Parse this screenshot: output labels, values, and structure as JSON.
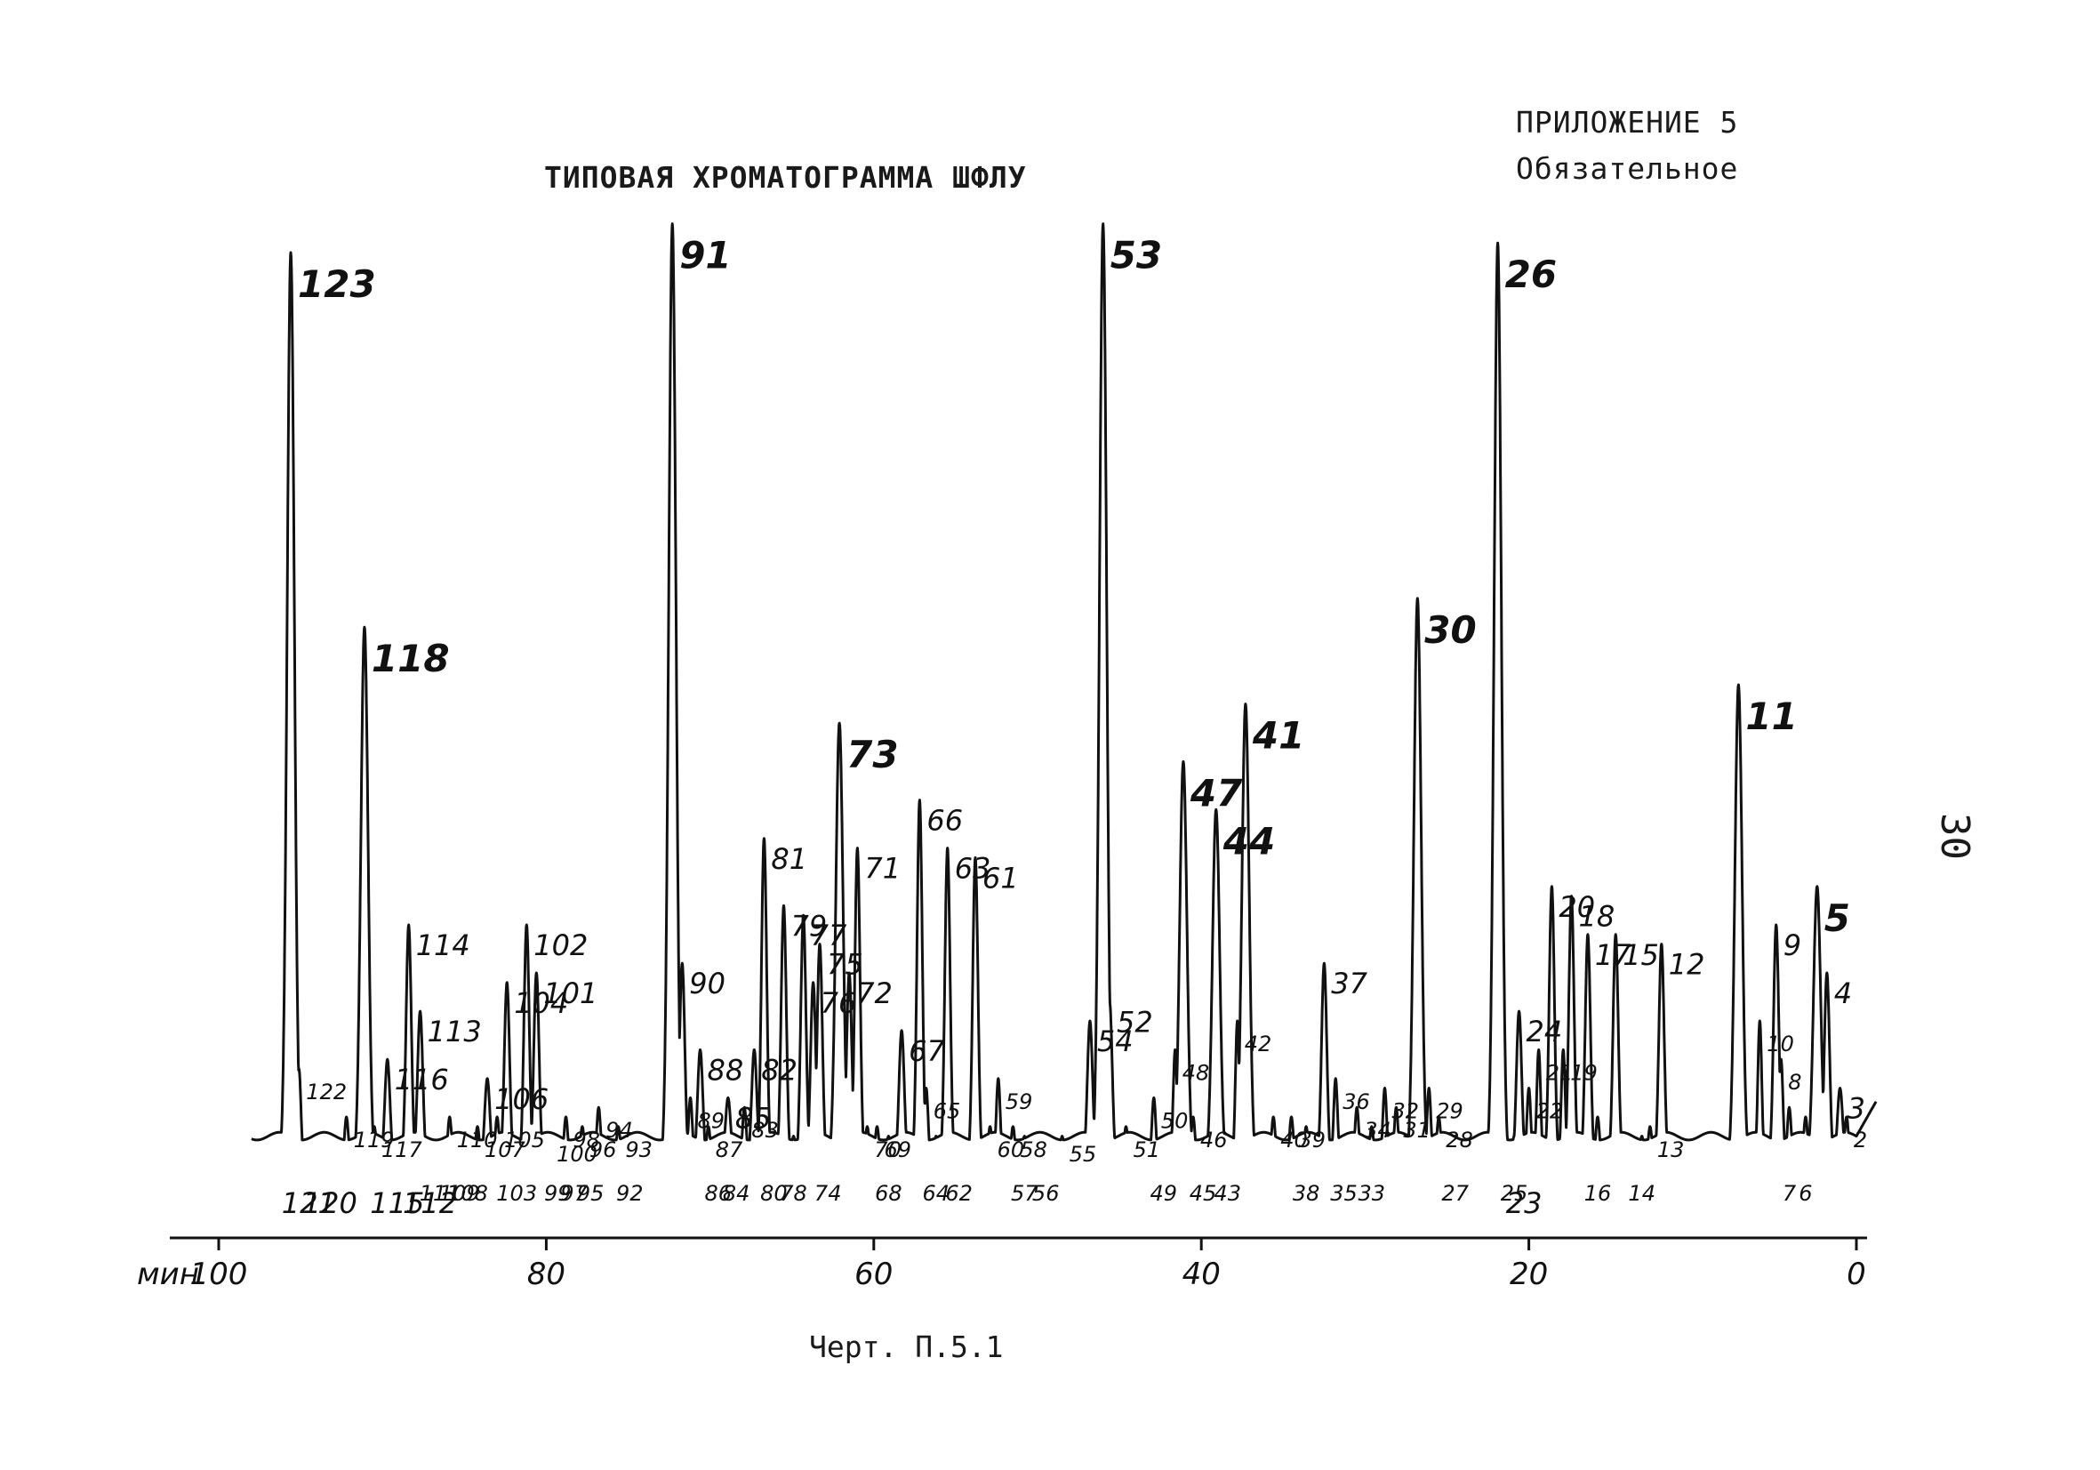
{
  "header": {
    "appendix": "ПРИЛОЖЕНИЕ 5",
    "appendix_sub": "Обязательное",
    "title": "ТИПОВАЯ ХРОМАТОГРАММА ШФЛУ",
    "caption": "Черт. П.5.1",
    "page_number": "30"
  },
  "colors": {
    "ink": "#111111",
    "paper": "#ffffff"
  },
  "chart_data": {
    "type": "line",
    "title": "ТИПОВАЯ ХРОМАТОГРАММА ШФЛУ",
    "xlabel": "",
    "x_unit_label": "мин",
    "ylabel": "",
    "x_reversed": true,
    "xlim": [
      0,
      100
    ],
    "x_ticks": [
      {
        "x": 100,
        "label": "100"
      },
      {
        "x": 80,
        "label": "80"
      },
      {
        "x": 60,
        "label": "60"
      },
      {
        "x": 40,
        "label": "40"
      },
      {
        "x": 20,
        "label": "20"
      },
      {
        "x": 0,
        "label": "0"
      }
    ],
    "baseline": 0.03,
    "peaks": [
      {
        "x": 0.6,
        "h": 0.05,
        "label": "2",
        "lp": "above",
        "size": "s"
      },
      {
        "x": 1.0,
        "h": 0.08,
        "label": "3",
        "lp": "above",
        "size": "m"
      },
      {
        "x": 1.8,
        "h": 0.2,
        "label": "4",
        "lp": "above",
        "size": "m"
      },
      {
        "x": 2.4,
        "h": 0.29,
        "label": "5",
        "lp": "above",
        "size": "l"
      },
      {
        "x": 3.1,
        "h": 0.05,
        "label": "6",
        "lp": "below",
        "size": "s"
      },
      {
        "x": 4.1,
        "h": 0.06,
        "label": "7",
        "lp": "below",
        "size": "s"
      },
      {
        "x": 4.6,
        "h": 0.11,
        "label": "8",
        "lp": "above",
        "size": "s"
      },
      {
        "x": 4.9,
        "h": 0.25,
        "label": "9",
        "lp": "above",
        "size": "m"
      },
      {
        "x": 5.9,
        "h": 0.15,
        "label": "10",
        "lp": "above",
        "size": "s"
      },
      {
        "x": 7.2,
        "h": 0.5,
        "label": "11",
        "lp": "above",
        "size": "l"
      },
      {
        "x": 11.9,
        "h": 0.23,
        "label": "12",
        "lp": "above",
        "size": "m"
      },
      {
        "x": 12.6,
        "h": 0.04,
        "label": "13",
        "lp": "above",
        "size": "s"
      },
      {
        "x": 13.1,
        "h": 0.03,
        "label": "14",
        "lp": "below",
        "size": "s"
      },
      {
        "x": 14.7,
        "h": 0.24,
        "label": "15",
        "lp": "above",
        "size": "m"
      },
      {
        "x": 15.8,
        "h": 0.05,
        "label": "16",
        "lp": "below",
        "size": "s"
      },
      {
        "x": 16.4,
        "h": 0.24,
        "label": "17",
        "lp": "above",
        "size": "m"
      },
      {
        "x": 17.4,
        "h": 0.28,
        "label": "18",
        "lp": "above",
        "size": "m"
      },
      {
        "x": 17.9,
        "h": 0.12,
        "label": "19",
        "lp": "above",
        "size": "s"
      },
      {
        "x": 18.6,
        "h": 0.29,
        "label": "20",
        "lp": "above",
        "size": "m"
      },
      {
        "x": 19.4,
        "h": 0.12,
        "label": "21",
        "lp": "above",
        "size": "s"
      },
      {
        "x": 20.0,
        "h": 0.08,
        "label": "22",
        "lp": "above",
        "size": "s"
      },
      {
        "x": 20.3,
        "h": 0.02,
        "label": "23",
        "lp": "below",
        "size": "m"
      },
      {
        "x": 20.6,
        "h": 0.16,
        "label": "24",
        "lp": "above",
        "size": "m"
      },
      {
        "x": 20.9,
        "h": 0.03,
        "label": "25",
        "lp": "below",
        "size": "s"
      },
      {
        "x": 21.9,
        "h": 0.96,
        "label": "26",
        "lp": "above",
        "size": "l"
      },
      {
        "x": 24.5,
        "h": 0.03,
        "label": "27",
        "lp": "below",
        "size": "s"
      },
      {
        "x": 25.5,
        "h": 0.05,
        "label": "28",
        "lp": "above",
        "size": "s"
      },
      {
        "x": 26.1,
        "h": 0.08,
        "label": "29",
        "lp": "above",
        "size": "s"
      },
      {
        "x": 26.8,
        "h": 0.59,
        "label": "30",
        "lp": "above",
        "size": "l"
      },
      {
        "x": 28.1,
        "h": 0.06,
        "label": "31",
        "lp": "above",
        "size": "s"
      },
      {
        "x": 28.8,
        "h": 0.08,
        "label": "32",
        "lp": "above",
        "size": "s"
      },
      {
        "x": 29.6,
        "h": 0.04,
        "label": "33",
        "lp": "below",
        "size": "s"
      },
      {
        "x": 30.5,
        "h": 0.06,
        "label": "34",
        "lp": "above",
        "size": "s"
      },
      {
        "x": 31.3,
        "h": 0.03,
        "label": "35",
        "lp": "below",
        "size": "s"
      },
      {
        "x": 31.8,
        "h": 0.09,
        "label": "36",
        "lp": "above",
        "size": "s"
      },
      {
        "x": 32.5,
        "h": 0.21,
        "label": "37",
        "lp": "above",
        "size": "m"
      },
      {
        "x": 33.6,
        "h": 0.04,
        "label": "38",
        "lp": "below",
        "size": "s"
      },
      {
        "x": 34.5,
        "h": 0.05,
        "label": "39",
        "lp": "above",
        "size": "s"
      },
      {
        "x": 35.6,
        "h": 0.05,
        "label": "40",
        "lp": "above",
        "size": "s"
      },
      {
        "x": 37.3,
        "h": 0.48,
        "label": "41",
        "lp": "above",
        "size": "l"
      },
      {
        "x": 37.8,
        "h": 0.15,
        "label": "42",
        "lp": "above",
        "size": "s"
      },
      {
        "x": 38.4,
        "h": 0.02,
        "label": "43",
        "lp": "below",
        "size": "s"
      },
      {
        "x": 39.1,
        "h": 0.37,
        "label": "44",
        "lp": "above",
        "size": "l"
      },
      {
        "x": 39.9,
        "h": 0.02,
        "label": "45",
        "lp": "below",
        "size": "s"
      },
      {
        "x": 40.5,
        "h": 0.05,
        "label": "46",
        "lp": "above",
        "size": "s"
      },
      {
        "x": 41.1,
        "h": 0.42,
        "label": "47",
        "lp": "above",
        "size": "l"
      },
      {
        "x": 41.6,
        "h": 0.12,
        "label": "48",
        "lp": "above",
        "size": "s"
      },
      {
        "x": 42.3,
        "h": 0.02,
        "label": "49",
        "lp": "below",
        "size": "s"
      },
      {
        "x": 42.9,
        "h": 0.07,
        "label": "50",
        "lp": "above",
        "size": "s"
      },
      {
        "x": 44.6,
        "h": 0.04,
        "label": "51",
        "lp": "above",
        "size": "s"
      },
      {
        "x": 45.6,
        "h": 0.17,
        "label": "52",
        "lp": "above",
        "size": "m"
      },
      {
        "x": 46.0,
        "h": 0.98,
        "label": "53",
        "lp": "above",
        "size": "l"
      },
      {
        "x": 46.8,
        "h": 0.15,
        "label": "54",
        "lp": "above",
        "size": "m"
      },
      {
        "x": 48.5,
        "h": 0.03,
        "label": "55",
        "lp": "above",
        "size": "s"
      },
      {
        "x": 49.5,
        "h": 0.02,
        "label": "56",
        "lp": "below",
        "size": "s"
      },
      {
        "x": 50.8,
        "h": 0.03,
        "label": "57",
        "lp": "below",
        "size": "s"
      },
      {
        "x": 51.5,
        "h": 0.04,
        "label": "58",
        "lp": "above",
        "size": "s"
      },
      {
        "x": 52.4,
        "h": 0.09,
        "label": "59",
        "lp": "above",
        "size": "s"
      },
      {
        "x": 52.9,
        "h": 0.04,
        "label": "60",
        "lp": "above",
        "size": "s"
      },
      {
        "x": 53.8,
        "h": 0.32,
        "label": "61",
        "lp": "above",
        "size": "m"
      },
      {
        "x": 54.8,
        "h": 0.03,
        "label": "62",
        "lp": "below",
        "size": "s"
      },
      {
        "x": 55.5,
        "h": 0.33,
        "label": "63",
        "lp": "above",
        "size": "m"
      },
      {
        "x": 56.2,
        "h": 0.03,
        "label": "64",
        "lp": "below",
        "size": "s"
      },
      {
        "x": 56.8,
        "h": 0.08,
        "label": "65",
        "lp": "above",
        "size": "s"
      },
      {
        "x": 57.2,
        "h": 0.38,
        "label": "66",
        "lp": "above",
        "size": "m"
      },
      {
        "x": 58.3,
        "h": 0.14,
        "label": "67",
        "lp": "above",
        "size": "m"
      },
      {
        "x": 59.1,
        "h": 0.03,
        "label": "68",
        "lp": "below",
        "size": "s"
      },
      {
        "x": 59.8,
        "h": 0.04,
        "label": "69",
        "lp": "above",
        "size": "s"
      },
      {
        "x": 60.4,
        "h": 0.04,
        "label": "70",
        "lp": "above",
        "size": "s"
      },
      {
        "x": 61.0,
        "h": 0.33,
        "label": "71",
        "lp": "above",
        "size": "m"
      },
      {
        "x": 61.5,
        "h": 0.2,
        "label": "72",
        "lp": "above",
        "size": "m"
      },
      {
        "x": 62.1,
        "h": 0.46,
        "label": "73",
        "lp": "above",
        "size": "l"
      },
      {
        "x": 62.8,
        "h": 0.03,
        "label": "74",
        "lp": "below",
        "size": "s"
      },
      {
        "x": 63.3,
        "h": 0.23,
        "label": "75",
        "lp": "above",
        "size": "m"
      },
      {
        "x": 63.7,
        "h": 0.19,
        "label": "76",
        "lp": "above",
        "size": "m"
      },
      {
        "x": 64.3,
        "h": 0.26,
        "label": "77",
        "lp": "above",
        "size": "m"
      },
      {
        "x": 64.9,
        "h": 0.03,
        "label": "78",
        "lp": "below",
        "size": "s"
      },
      {
        "x": 65.5,
        "h": 0.27,
        "label": "79",
        "lp": "above",
        "size": "m"
      },
      {
        "x": 66.1,
        "h": 0.02,
        "label": "80",
        "lp": "below",
        "size": "s"
      },
      {
        "x": 66.7,
        "h": 0.34,
        "label": "81",
        "lp": "above",
        "size": "m"
      },
      {
        "x": 67.3,
        "h": 0.12,
        "label": "82",
        "lp": "above",
        "size": "m"
      },
      {
        "x": 67.9,
        "h": 0.06,
        "label": "83",
        "lp": "above",
        "size": "s"
      },
      {
        "x": 68.4,
        "h": 0.03,
        "label": "84",
        "lp": "below",
        "size": "s"
      },
      {
        "x": 68.9,
        "h": 0.07,
        "label": "85",
        "lp": "above",
        "size": "m"
      },
      {
        "x": 69.5,
        "h": 0.03,
        "label": "86",
        "lp": "below",
        "size": "s"
      },
      {
        "x": 70.1,
        "h": 0.04,
        "label": "87",
        "lp": "above",
        "size": "s"
      },
      {
        "x": 70.6,
        "h": 0.12,
        "label": "88",
        "lp": "above",
        "size": "m"
      },
      {
        "x": 71.2,
        "h": 0.07,
        "label": "89",
        "lp": "above",
        "size": "s"
      },
      {
        "x": 71.7,
        "h": 0.21,
        "label": "90",
        "lp": "above",
        "size": "m"
      },
      {
        "x": 72.3,
        "h": 0.98,
        "label": "91",
        "lp": "above",
        "size": "l"
      },
      {
        "x": 74.9,
        "h": 0.02,
        "label": "92",
        "lp": "below",
        "size": "s"
      },
      {
        "x": 75.6,
        "h": 0.04,
        "label": "93",
        "lp": "above",
        "size": "s"
      },
      {
        "x": 76.8,
        "h": 0.06,
        "label": "94",
        "lp": "above",
        "size": "s"
      },
      {
        "x": 77.3,
        "h": 0.02,
        "label": "95",
        "lp": "below",
        "size": "s"
      },
      {
        "x": 77.8,
        "h": 0.04,
        "label": "96",
        "lp": "above",
        "size": "s"
      },
      {
        "x": 78.3,
        "h": 0.02,
        "label": "97",
        "lp": "below",
        "size": "s"
      },
      {
        "x": 78.8,
        "h": 0.05,
        "label": "98",
        "lp": "above",
        "size": "s"
      },
      {
        "x": 79.3,
        "h": 0.02,
        "label": "99",
        "lp": "below",
        "size": "s"
      },
      {
        "x": 79.8,
        "h": 0.03,
        "label": "100",
        "lp": "above",
        "size": "s"
      },
      {
        "x": 80.6,
        "h": 0.2,
        "label": "101",
        "lp": "above",
        "size": "m"
      },
      {
        "x": 81.2,
        "h": 0.25,
        "label": "102",
        "lp": "above",
        "size": "m"
      },
      {
        "x": 81.8,
        "h": 0.02,
        "label": "103",
        "lp": "below",
        "size": "s"
      },
      {
        "x": 82.4,
        "h": 0.19,
        "label": "104",
        "lp": "above",
        "size": "m"
      },
      {
        "x": 83.0,
        "h": 0.05,
        "label": "105",
        "lp": "above",
        "size": "s"
      },
      {
        "x": 83.6,
        "h": 0.09,
        "label": "106",
        "lp": "above",
        "size": "m"
      },
      {
        "x": 84.2,
        "h": 0.04,
        "label": "107",
        "lp": "above",
        "size": "s"
      },
      {
        "x": 84.8,
        "h": 0.02,
        "label": "108",
        "lp": "below",
        "size": "s"
      },
      {
        "x": 85.3,
        "h": 0.02,
        "label": "109",
        "lp": "below",
        "size": "s"
      },
      {
        "x": 85.9,
        "h": 0.05,
        "label": "110",
        "lp": "above",
        "size": "s"
      },
      {
        "x": 86.5,
        "h": 0.02,
        "label": "111",
        "lp": "below",
        "size": "s"
      },
      {
        "x": 87.1,
        "h": 0.02,
        "label": "112",
        "lp": "below",
        "size": "m"
      },
      {
        "x": 87.7,
        "h": 0.16,
        "label": "113",
        "lp": "above",
        "size": "m"
      },
      {
        "x": 88.4,
        "h": 0.25,
        "label": "114",
        "lp": "above",
        "size": "m"
      },
      {
        "x": 89.1,
        "h": 0.02,
        "label": "115",
        "lp": "below",
        "size": "m"
      },
      {
        "x": 89.7,
        "h": 0.11,
        "label": "116",
        "lp": "above",
        "size": "m"
      },
      {
        "x": 90.5,
        "h": 0.04,
        "label": "117",
        "lp": "above",
        "size": "s"
      },
      {
        "x": 91.1,
        "h": 0.56,
        "label": "118",
        "lp": "above",
        "size": "l"
      },
      {
        "x": 92.2,
        "h": 0.05,
        "label": "119",
        "lp": "above",
        "size": "s"
      },
      {
        "x": 93.2,
        "h": 0.02,
        "label": "120",
        "lp": "below",
        "size": "m"
      },
      {
        "x": 94.5,
        "h": 0.02,
        "label": "121",
        "lp": "below",
        "size": "m"
      },
      {
        "x": 95.1,
        "h": 0.1,
        "label": "122",
        "lp": "above",
        "size": "s"
      },
      {
        "x": 95.6,
        "h": 0.95,
        "label": "123",
        "lp": "above",
        "size": "l"
      }
    ]
  }
}
